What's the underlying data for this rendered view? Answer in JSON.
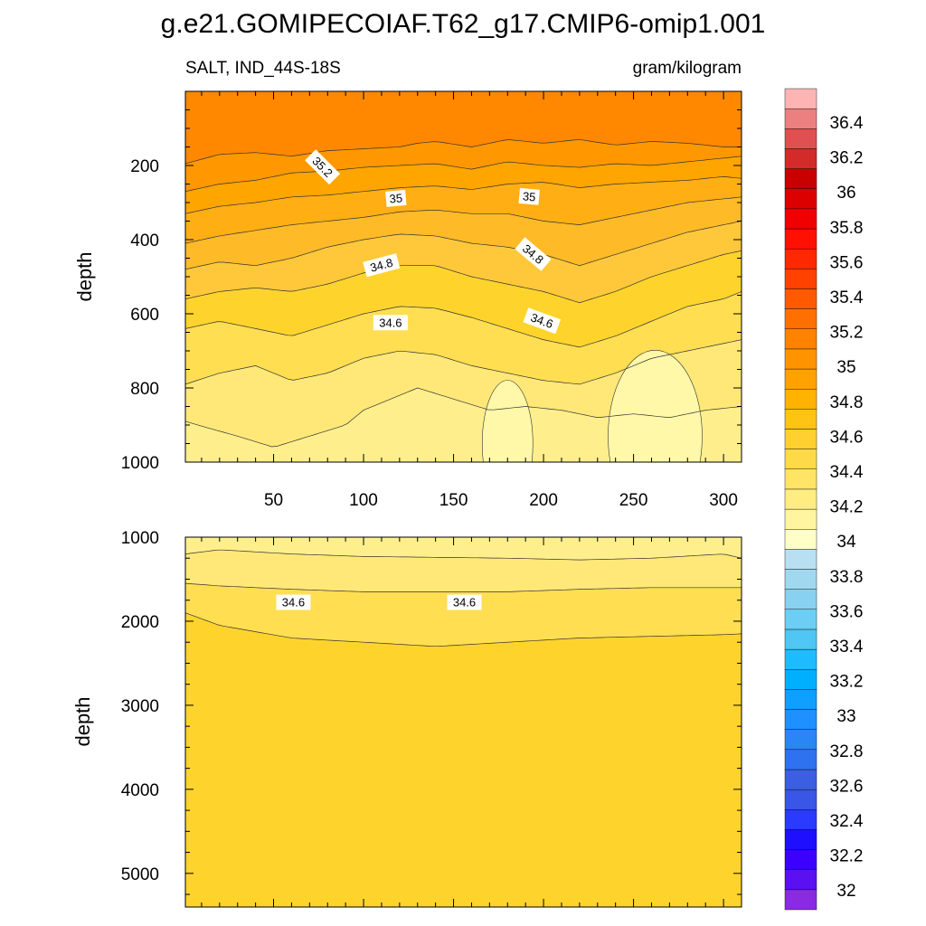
{
  "title": "g.e21.GOMIPECOIAF.T62_g17.CMIP6-omip1.001",
  "left_string": "SALT, IND_44S-18S",
  "right_string": "gram/kilogram",
  "chart_data": [
    {
      "type": "heatmap",
      "name": "upper",
      "variable": "SALT",
      "region": "IND_44S-18S",
      "units": "gram/kilogram",
      "ylabel": "depth",
      "xlim": [
        1,
        310
      ],
      "ylim": [
        1000,
        0
      ],
      "x_ticks": [
        50,
        100,
        150,
        200,
        250,
        300
      ],
      "y_ticks": [
        200,
        400,
        600,
        800,
        1000
      ],
      "contour_interval": 0.1,
      "contours": [
        {
          "level": 35.2,
          "x": [
            1,
            20,
            40,
            60,
            80,
            100,
            120,
            130,
            140,
            160,
            180,
            200,
            220,
            240,
            260,
            280,
            300,
            310
          ],
          "depth": [
            195,
            170,
            165,
            175,
            160,
            155,
            150,
            140,
            135,
            150,
            130,
            140,
            130,
            145,
            135,
            140,
            150,
            150
          ]
        },
        {
          "level": 35.1,
          "x": [
            1,
            20,
            40,
            60,
            80,
            100,
            120,
            140,
            160,
            180,
            200,
            220,
            240,
            260,
            280,
            300,
            310
          ],
          "depth": [
            270,
            250,
            240,
            220,
            215,
            205,
            200,
            195,
            210,
            190,
            200,
            205,
            195,
            200,
            190,
            180,
            175
          ]
        },
        {
          "level": 35.0,
          "x": [
            1,
            20,
            40,
            60,
            80,
            100,
            120,
            140,
            160,
            180,
            200,
            220,
            240,
            260,
            280,
            300,
            310
          ],
          "depth": [
            330,
            310,
            300,
            285,
            280,
            270,
            260,
            255,
            265,
            250,
            245,
            260,
            250,
            245,
            240,
            230,
            235
          ]
        },
        {
          "level": 34.9,
          "x": [
            1,
            20,
            40,
            60,
            80,
            100,
            120,
            140,
            160,
            180,
            200,
            220,
            240,
            260,
            280,
            300,
            310
          ],
          "depth": [
            410,
            390,
            375,
            360,
            350,
            340,
            325,
            320,
            330,
            330,
            350,
            360,
            340,
            320,
            300,
            290,
            285
          ]
        },
        {
          "level": 34.8,
          "x": [
            1,
            20,
            40,
            60,
            80,
            100,
            120,
            140,
            160,
            180,
            200,
            220,
            240,
            260,
            280,
            300,
            310
          ],
          "depth": [
            480,
            460,
            470,
            450,
            420,
            400,
            385,
            390,
            410,
            420,
            440,
            470,
            440,
            410,
            380,
            360,
            350
          ]
        },
        {
          "level": 34.7,
          "x": [
            1,
            20,
            40,
            60,
            80,
            100,
            120,
            140,
            160,
            180,
            200,
            220,
            240,
            260,
            280,
            300,
            310
          ],
          "depth": [
            560,
            540,
            530,
            540,
            520,
            490,
            470,
            470,
            500,
            520,
            540,
            570,
            540,
            500,
            470,
            440,
            430
          ]
        },
        {
          "level": 34.6,
          "x": [
            1,
            20,
            40,
            60,
            80,
            100,
            120,
            140,
            160,
            180,
            200,
            220,
            240,
            260,
            280,
            300,
            310
          ],
          "depth": [
            640,
            620,
            640,
            660,
            630,
            600,
            580,
            585,
            610,
            640,
            670,
            690,
            660,
            620,
            580,
            560,
            540
          ]
        },
        {
          "level": 34.5,
          "x": [
            1,
            20,
            40,
            60,
            80,
            100,
            120,
            140,
            160,
            180,
            200,
            220,
            240,
            260,
            280,
            300,
            310
          ],
          "depth": [
            790,
            760,
            740,
            780,
            760,
            720,
            700,
            710,
            740,
            760,
            780,
            790,
            760,
            720,
            700,
            680,
            670
          ]
        },
        {
          "level": 34.4,
          "x": [
            1,
            15,
            30,
            50,
            70,
            90,
            100,
            115,
            130,
            150,
            170,
            190,
            210,
            230,
            250,
            270,
            290,
            310
          ],
          "depth": [
            890,
            910,
            930,
            960,
            930,
            900,
            860,
            830,
            800,
            830,
            860,
            850,
            860,
            880,
            870,
            880,
            860,
            850
          ]
        }
      ],
      "contour_labels": [
        {
          "text": "35.2",
          "x": 77,
          "depth": 205,
          "rotation": 45
        },
        {
          "text": "35",
          "x": 118,
          "depth": 290,
          "rotation": -5
        },
        {
          "text": "35",
          "x": 192,
          "depth": 285,
          "rotation": 5
        },
        {
          "text": "34.8",
          "x": 110,
          "depth": 470,
          "rotation": -15
        },
        {
          "text": "34.8",
          "x": 194,
          "depth": 440,
          "rotation": 40
        },
        {
          "text": "34.6",
          "x": 115,
          "depth": 625,
          "rotation": 0
        },
        {
          "text": "34.6",
          "x": 199,
          "depth": 620,
          "rotation": 20
        }
      ]
    },
    {
      "type": "heatmap",
      "name": "lower",
      "variable": "SALT",
      "region": "IND_44S-18S",
      "units": "gram/kilogram",
      "ylabel": "depth",
      "xlim": [
        1,
        310
      ],
      "ylim": [
        5400,
        1000
      ],
      "y_ticks": [
        1000,
        2000,
        3000,
        4000,
        5000
      ],
      "contours": [
        {
          "level": 34.5,
          "x": [
            1,
            20,
            60,
            100,
            140,
            180,
            220,
            260,
            300,
            310
          ],
          "depth": [
            1200,
            1150,
            1200,
            1230,
            1240,
            1250,
            1270,
            1250,
            1200,
            1250
          ]
        },
        {
          "level": 34.6,
          "x": [
            1,
            20,
            60,
            100,
            140,
            180,
            220,
            260,
            300,
            310
          ],
          "depth": [
            1550,
            1580,
            1620,
            1650,
            1650,
            1650,
            1620,
            1600,
            1600,
            1600
          ]
        },
        {
          "level": 34.7,
          "x": [
            1,
            20,
            60,
            100,
            140,
            180,
            220,
            260,
            300,
            310
          ],
          "depth": [
            1900,
            2050,
            2200,
            2250,
            2300,
            2250,
            2200,
            2180,
            2160,
            2150
          ]
        }
      ],
      "contour_labels": [
        {
          "text": "34.6",
          "x": 61,
          "depth": 1780,
          "rotation": 0
        },
        {
          "text": "34.6",
          "x": 156,
          "depth": 1780,
          "rotation": 0
        }
      ]
    }
  ],
  "colorbar": {
    "labels": [
      "36.4",
      "36.2",
      "36",
      "35.8",
      "35.6",
      "35.4",
      "35.2",
      "35",
      "34.8",
      "34.6",
      "34.4",
      "34.2",
      "34",
      "33.8",
      "33.6",
      "33.4",
      "33.2",
      "33",
      "32.8",
      "32.6",
      "32.4",
      "32.2",
      "32"
    ],
    "colors": [
      "#8a2be2",
      "#5a10f0",
      "#3b00ff",
      "#1e10ff",
      "#2a3aff",
      "#3a56e6",
      "#3b5fe0",
      "#2f72f0",
      "#2b86f5",
      "#1e90ff",
      "#109fff",
      "#00b0ff",
      "#1ebcff",
      "#4fc6f4",
      "#6ccef4",
      "#88d1f0",
      "#a0d8ef",
      "#b8e0f2",
      "#ffffc8",
      "#fff5a0",
      "#ffed82",
      "#ffe466",
      "#ffda48",
      "#ffd030",
      "#ffc314",
      "#ffb300",
      "#ffa200",
      "#ff9400",
      "#ff8200",
      "#ff7000",
      "#ff5a00",
      "#ff4200",
      "#ff2800",
      "#ff1000",
      "#f00000",
      "#dc0000",
      "#c80000",
      "#d32a2a",
      "#e05050",
      "#ec8080",
      "#ffb4b4"
    ]
  }
}
